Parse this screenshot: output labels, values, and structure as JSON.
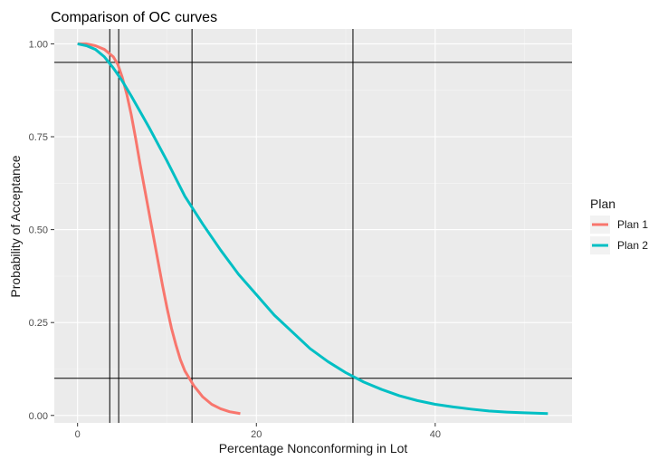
{
  "chart_data": {
    "type": "line",
    "title": "Comparison of OC curves",
    "xlabel": "Percentage Nonconforming in Lot",
    "ylabel": "Probability of Acceptance",
    "xlim": [
      -2.6,
      55.3
    ],
    "ylim": [
      -0.02,
      1.04
    ],
    "x_ticks": [
      0,
      20,
      40
    ],
    "x_tick_labels": [
      "0",
      "20",
      "40"
    ],
    "y_ticks": [
      0,
      0.25,
      0.5,
      0.75,
      1.0
    ],
    "y_tick_labels": [
      "0.00",
      "0.25",
      "0.50",
      "0.75",
      "1.00"
    ],
    "grid": true,
    "background": "#ebebeb",
    "legend": {
      "title": "Plan",
      "position": "right",
      "entries": [
        "Plan 1",
        "Plan 2"
      ]
    },
    "series": [
      {
        "name": "Plan 1",
        "color": "#f8766d",
        "x": [
          0,
          1,
          2,
          3,
          4,
          4.5,
          5,
          5.5,
          6,
          6.5,
          7,
          7.5,
          8,
          8.5,
          9,
          9.5,
          10,
          10.5,
          11,
          11.5,
          12,
          12.5,
          13,
          13.5,
          14,
          15,
          16,
          17,
          18.2
        ],
        "y": [
          1.0,
          1.0,
          0.995,
          0.985,
          0.965,
          0.945,
          0.91,
          0.865,
          0.81,
          0.745,
          0.675,
          0.61,
          0.545,
          0.48,
          0.415,
          0.35,
          0.29,
          0.235,
          0.19,
          0.15,
          0.12,
          0.1,
          0.08,
          0.065,
          0.05,
          0.03,
          0.018,
          0.01,
          0.005
        ]
      },
      {
        "name": "Plan 2",
        "color": "#00bfc4",
        "x": [
          0,
          1,
          2,
          3,
          4,
          5,
          6,
          8,
          10,
          12,
          14,
          16,
          18,
          20,
          22,
          24,
          26,
          28,
          30,
          32,
          34,
          36,
          38,
          40,
          42,
          44,
          46,
          48,
          50,
          52.6
        ],
        "y": [
          1.0,
          0.995,
          0.985,
          0.965,
          0.935,
          0.9,
          0.86,
          0.775,
          0.685,
          0.59,
          0.515,
          0.445,
          0.38,
          0.325,
          0.27,
          0.225,
          0.18,
          0.145,
          0.115,
          0.09,
          0.07,
          0.053,
          0.04,
          0.03,
          0.023,
          0.017,
          0.012,
          0.009,
          0.007,
          0.005
        ]
      }
    ],
    "reference_lines": {
      "horizontal": [
        0.95,
        0.1
      ],
      "vertical": [
        3.6,
        4.6,
        12.8,
        30.8
      ]
    }
  }
}
